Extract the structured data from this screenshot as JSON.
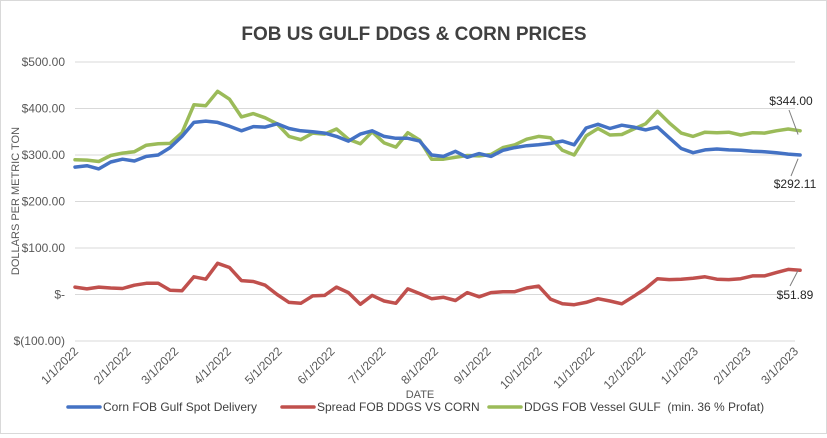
{
  "chart_data": {
    "type": "line",
    "title": "FOB US GULF DDGS & CORN PRICES",
    "xlabel": "DATE",
    "ylabel": "DOLLARS PER METRIC TON",
    "ylim": [
      -100,
      500
    ],
    "yticks": [
      {
        "value": 500,
        "label": "$500.00"
      },
      {
        "value": 400,
        "label": "$400.00"
      },
      {
        "value": 300,
        "label": "$300.00"
      },
      {
        "value": 200,
        "label": "$200.00"
      },
      {
        "value": 100,
        "label": "$100.00"
      },
      {
        "value": 0,
        "label": "$-"
      },
      {
        "value": -100,
        "label": "$(100.00)"
      }
    ],
    "xticks": [
      "1/1/2022",
      "2/1/2022",
      "3/1/2022",
      "4/1/2022",
      "5/1/2022",
      "6/1/2022",
      "7/1/2022",
      "8/1/2022",
      "9/1/2022",
      "10/1/2022",
      "11/1/2022",
      "12/1/2022",
      "1/1/2023",
      "2/1/2023",
      "3/1/2023"
    ],
    "grid": true,
    "legend": "bottom",
    "x": [
      "2022-01-01",
      "2022-01-08",
      "2022-01-15",
      "2022-01-22",
      "2022-01-29",
      "2022-02-05",
      "2022-02-12",
      "2022-02-19",
      "2022-02-26",
      "2022-03-05",
      "2022-03-12",
      "2022-03-19",
      "2022-03-26",
      "2022-04-02",
      "2022-04-09",
      "2022-04-16",
      "2022-04-23",
      "2022-04-30",
      "2022-05-07",
      "2022-05-14",
      "2022-05-21",
      "2022-05-28",
      "2022-06-04",
      "2022-06-11",
      "2022-06-18",
      "2022-06-25",
      "2022-07-02",
      "2022-07-09",
      "2022-07-16",
      "2022-07-23",
      "2022-07-30",
      "2022-08-06",
      "2022-08-13",
      "2022-08-20",
      "2022-08-27",
      "2022-09-03",
      "2022-09-10",
      "2022-09-17",
      "2022-09-24",
      "2022-10-01",
      "2022-10-08",
      "2022-10-15",
      "2022-10-22",
      "2022-10-29",
      "2022-11-05",
      "2022-11-12",
      "2022-11-19",
      "2022-11-26",
      "2022-12-03",
      "2022-12-10",
      "2022-12-17",
      "2022-12-24",
      "2022-12-31",
      "2023-01-07",
      "2023-01-14",
      "2023-01-21",
      "2023-01-28",
      "2023-02-04",
      "2023-02-11",
      "2023-02-18",
      "2023-02-25",
      "2023-03-04"
    ],
    "series": [
      {
        "name": "Corn FOB Gulf Spot Delivery",
        "color": "#4472c4",
        "values": [
          274,
          277,
          270,
          285,
          291,
          287,
          297,
          300,
          316,
          340,
          370,
          373,
          370,
          362,
          352,
          361,
          360,
          367,
          357,
          352,
          350,
          347,
          340,
          330,
          345,
          352,
          340,
          336,
          336,
          330,
          300,
          297,
          308,
          295,
          303,
          297,
          310,
          316,
          320,
          322,
          325,
          330,
          322,
          358,
          366,
          357,
          364,
          360,
          354,
          360,
          337,
          314,
          305,
          311,
          313,
          311,
          310,
          308,
          307,
          305,
          302,
          300
        ]
      },
      {
        "name": "Spread FOB DDGS VS CORN",
        "color": "#c0504d",
        "values": [
          16,
          12,
          16,
          14,
          13,
          20,
          24,
          24,
          9,
          8,
          38,
          33,
          67,
          58,
          30,
          28,
          20,
          0,
          -17,
          -19,
          -3,
          -2,
          16,
          4,
          -21,
          -2,
          -14,
          -19,
          12,
          2,
          -9,
          -6,
          -13,
          4,
          -5,
          4,
          6,
          6,
          14,
          18,
          -10,
          -20,
          -22,
          -17,
          -9,
          -14,
          -20,
          -4,
          13,
          34,
          32,
          33,
          35,
          38,
          33,
          32,
          34,
          40,
          40,
          47,
          54,
          52
        ]
      },
      {
        "name": "DDGS FOB Vessel GULF  (min. 36 % Profat)",
        "color": "#9bbb59",
        "values": [
          290,
          289,
          286,
          299,
          304,
          307,
          321,
          324,
          325,
          348,
          408,
          406,
          437,
          420,
          382,
          389,
          380,
          367,
          340,
          333,
          347,
          345,
          356,
          334,
          324,
          350,
          326,
          317,
          348,
          332,
          291,
          291,
          295,
          299,
          298,
          301,
          316,
          322,
          334,
          340,
          337,
          310,
          300,
          341,
          357,
          343,
          344,
          356,
          367,
          394,
          369,
          347,
          340,
          349,
          348,
          349,
          343,
          348,
          347,
          352,
          356,
          352
        ]
      }
    ],
    "annotations": [
      {
        "label": "$344.00",
        "value": 344.0,
        "series": 2
      },
      {
        "label": "$292.11",
        "value": 292.11,
        "series": 0
      },
      {
        "label": "$51.89",
        "value": 51.89,
        "series": 1
      }
    ]
  }
}
